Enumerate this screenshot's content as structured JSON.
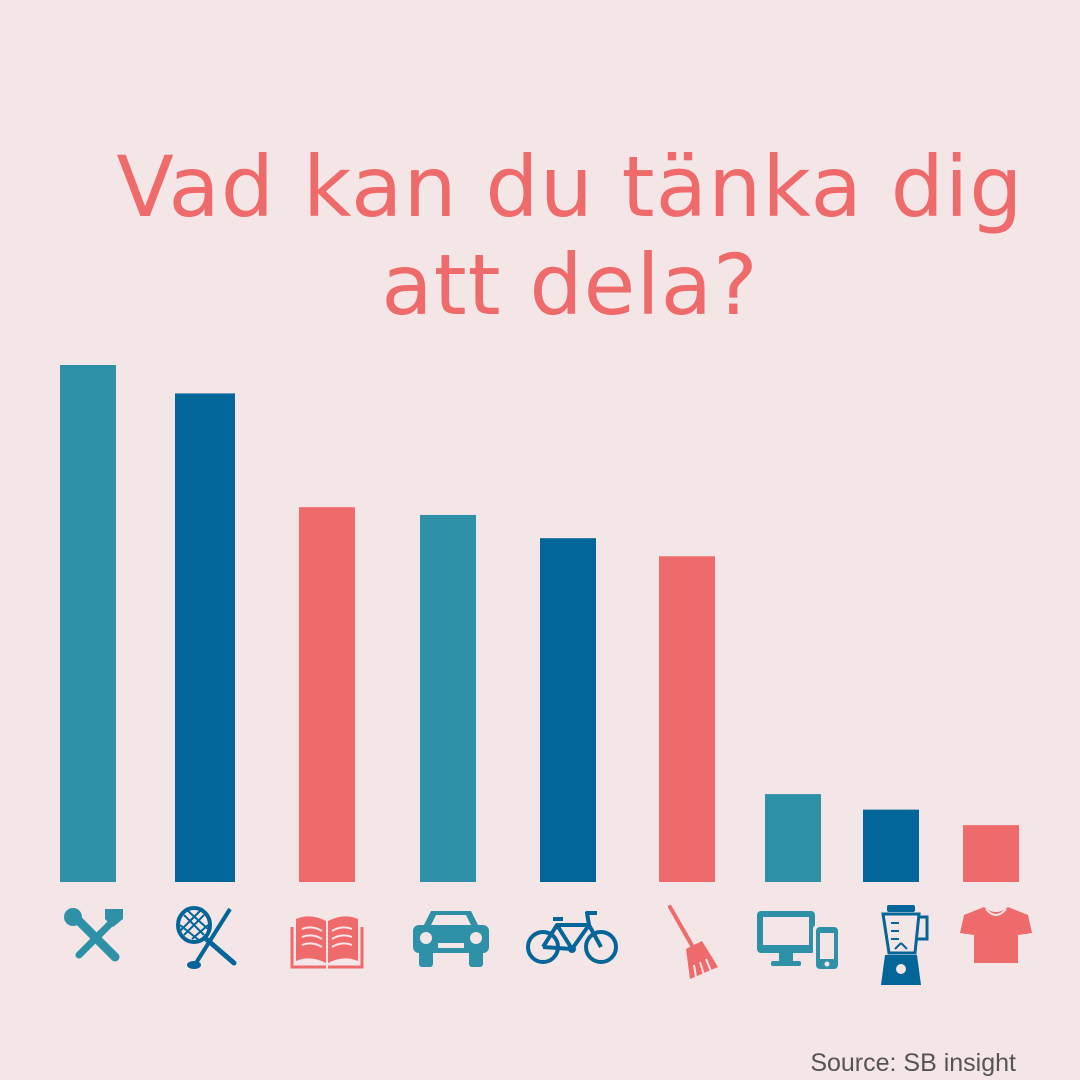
{
  "title_lines": [
    "Vad kan du tänka dig",
    "att dela?"
  ],
  "source": "Source: SB insight",
  "colors": {
    "background": "#f4e5e6",
    "title": "#ef6a6a",
    "teal": "#2e91a8",
    "blue": "#046598",
    "coral": "#ef6a6a"
  },
  "chart_data": {
    "type": "bar",
    "categories": [
      "tools-icon",
      "sports-gear-icon",
      "book-icon",
      "car-icon",
      "bicycle-icon",
      "broom-icon",
      "electronics-icon",
      "blender-icon",
      "tshirt-icon"
    ],
    "values": [
      100,
      94.5,
      72.5,
      71,
      66.5,
      63,
      17,
      14,
      11
    ],
    "bar_colors": [
      "#2e91a8",
      "#046598",
      "#ef6a6a",
      "#2e91a8",
      "#046598",
      "#ef6a6a",
      "#2e91a8",
      "#046598",
      "#ef6a6a"
    ],
    "ylim": [
      0,
      100
    ],
    "grid": false,
    "legend": "none",
    "xlabel": "",
    "ylabel": ""
  }
}
